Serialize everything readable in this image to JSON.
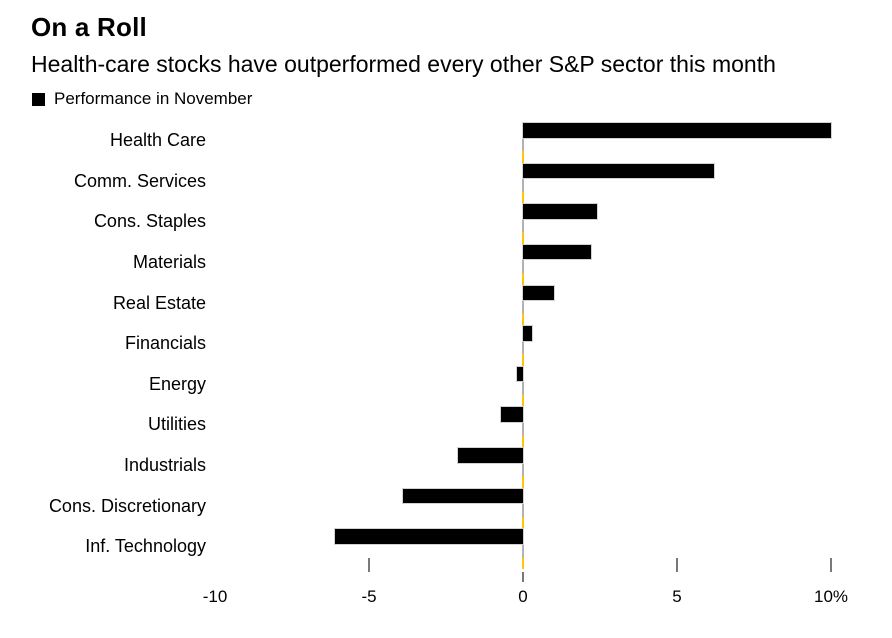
{
  "header": {
    "title": "On a Roll",
    "subtitle": "Health-care stocks have outperformed every other S&P sector this month"
  },
  "legend": {
    "label": "Performance in November",
    "swatch_color": "#000000"
  },
  "chart_data": {
    "type": "bar",
    "orientation": "horizontal",
    "title": "On a Roll",
    "subtitle": "Health-care stocks have outperformed every other S&P sector this month",
    "series_name": "Performance in November",
    "categories": [
      "Health Care",
      "Comm. Services",
      "Cons. Staples",
      "Materials",
      "Real Estate",
      "Financials",
      "Energy",
      "Utilities",
      "Industrials",
      "Cons. Discretionary",
      "Inf. Technology"
    ],
    "values": [
      10.0,
      6.2,
      2.4,
      2.2,
      1.0,
      0.3,
      -0.2,
      -0.7,
      -2.1,
      -3.9,
      -6.1
    ],
    "unit": "%",
    "xlim": [
      -10,
      10
    ],
    "x_tick_labels": [
      "-10",
      "-5",
      "0",
      "5",
      "10%"
    ],
    "x_tick_values": [
      -10,
      -5,
      0,
      5,
      10
    ],
    "tick_marks_at": [
      -5,
      0,
      5,
      10
    ],
    "grid": false,
    "legend_position": "top-left",
    "bar_color": "#000000",
    "zero_line_dash_colors": [
      "#b2b2b2",
      "#ffc40c"
    ]
  },
  "colors": {
    "background": "#ffffff",
    "text": "#000000",
    "bar_black": "#000000",
    "accent_yellow": "#ffc40c",
    "dash_gray": "#b2b2b2",
    "axis_tick_gray": "#76787a",
    "bar_outline": "#d2d2d2"
  }
}
